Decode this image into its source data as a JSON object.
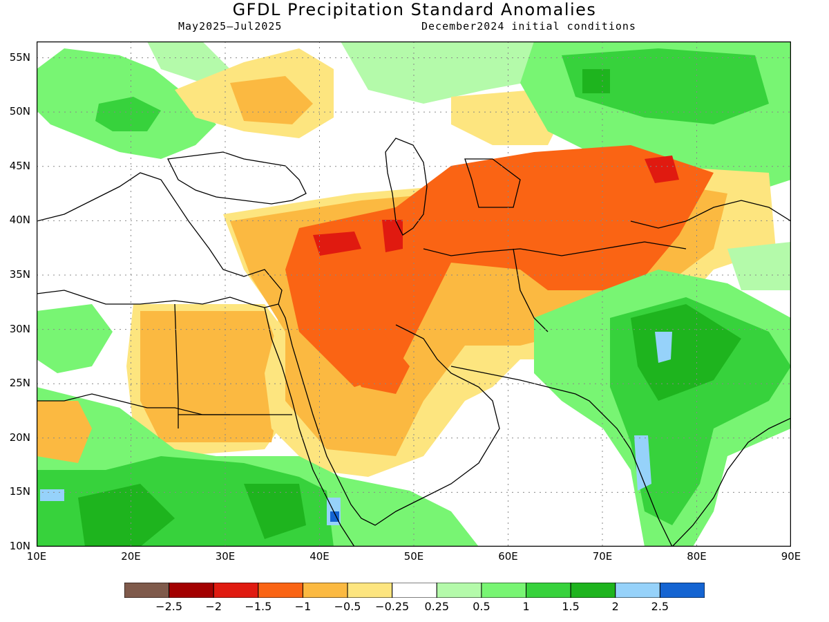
{
  "header": {
    "title": "GFDL Precipitation Standard Anomalies",
    "period": "May2025–Jul2025",
    "init": "December2024 initial conditions"
  },
  "axes": {
    "lat_labels": [
      "55N",
      "50N",
      "45N",
      "40N",
      "35N",
      "30N",
      "25N",
      "20N",
      "15N",
      "10N"
    ],
    "lat_values": [
      55,
      50,
      45,
      40,
      35,
      30,
      25,
      20,
      15,
      10
    ],
    "lon_labels": [
      "10E",
      "20E",
      "30E",
      "40E",
      "50E",
      "60E",
      "70E",
      "80E",
      "90E"
    ],
    "lon_values": [
      10,
      20,
      30,
      40,
      50,
      60,
      70,
      80,
      90
    ],
    "lon_range": [
      10,
      90
    ],
    "lat_range": [
      10,
      56.5
    ]
  },
  "legend": {
    "colors": [
      "#7f5a4b",
      "#a30000",
      "#e01a10",
      "#fa6414",
      "#fbb941",
      "#fde57f",
      "#ffffff",
      "#b4faaa",
      "#78f573",
      "#37d23c",
      "#1eb41e",
      "#96d2fa",
      "#1464d2"
    ],
    "labels": [
      "−2.5",
      "−2",
      "−1.5",
      "−1",
      "−0.5",
      "−0.25",
      "0.25",
      "0.5",
      "1",
      "1.5",
      "2",
      "2.5"
    ],
    "label_values": [
      -2.5,
      -2,
      -1.5,
      -1,
      -0.5,
      -0.25,
      0.25,
      0.5,
      1,
      1.5,
      2,
      2.5
    ]
  },
  "anomaly_regions": [
    {
      "level": "-0.5",
      "color": "#fbb941",
      "lon_min": 32,
      "lon_max": 52,
      "lat_min": 18,
      "lat_max": 40
    },
    {
      "level": "-1",
      "color": "#fa6414",
      "lon_min": 40,
      "lon_max": 57,
      "lat_min": 25,
      "lat_max": 38
    },
    {
      "level": "-1",
      "color": "#fa6414",
      "lon_min": 50,
      "lon_max": 82,
      "lat_min": 34,
      "lat_max": 45
    },
    {
      "level": "-1.5",
      "color": "#e01a10",
      "lon_min": 46,
      "lon_max": 49,
      "lat_min": 36,
      "lat_max": 39
    },
    {
      "level": "-1.5",
      "color": "#e01a10",
      "lon_min": 74,
      "lon_max": 79,
      "lat_min": 43,
      "lat_max": 46
    },
    {
      "level": "-0.5",
      "color": "#fbb941",
      "lon_min": 20,
      "lon_max": 32,
      "lat_min": 18,
      "lat_max": 31
    },
    {
      "level": "1.5",
      "color": "#37d23c",
      "lon_min": 70,
      "lon_max": 82,
      "lat_min": 12,
      "lat_max": 33
    },
    {
      "level": "1.5",
      "color": "#37d23c",
      "lon_min": 10,
      "lon_max": 45,
      "lat_min": 10,
      "lat_max": 19
    },
    {
      "level": "1.5",
      "color": "#37d23c",
      "lon_min": 68,
      "lon_max": 90,
      "lat_min": 49,
      "lat_max": 56
    },
    {
      "level": "2",
      "color": "#96d2fa",
      "lon_min": 75,
      "lon_max": 77,
      "lat_min": 13,
      "lat_max": 18
    },
    {
      "level": "2",
      "color": "#96d2fa",
      "lon_min": 77,
      "lon_max": 79,
      "lat_min": 27,
      "lat_max": 30
    }
  ]
}
